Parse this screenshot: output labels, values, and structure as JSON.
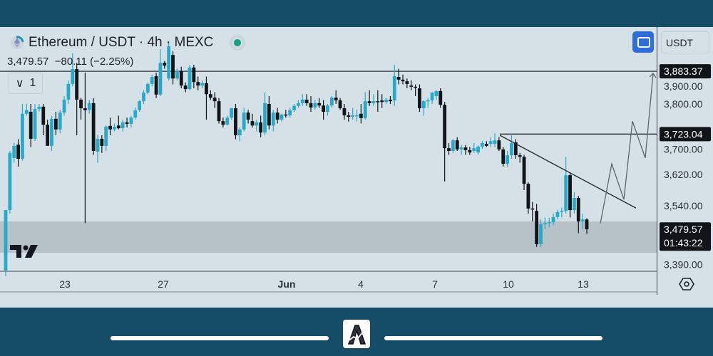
{
  "header": {
    "title": "Ethereum / USDT · 4h · MEXC",
    "last_price": "3,479.57",
    "change": "−80.11 (−2.25%)",
    "collapse_label": "1",
    "unit_label": "USDT"
  },
  "icons": {
    "coin": "ethereum-icon",
    "status": "market-open-dot",
    "fullscreen": "fullscreen-icon",
    "settings": "settings-hexagon-icon",
    "collapse": "chevron-down-icon",
    "tv_logo": "tradingview-logo",
    "app_logo": "app-logo-a"
  },
  "colors": {
    "bull": "#29a9c9",
    "bear": "#111418",
    "background": "#d6e1e7",
    "zone": "#b0bcc2",
    "band": "#154d68",
    "fullscreen_button": "#2f6ed9",
    "status_dot": "#15a083"
  },
  "chart_data": {
    "type": "candlestick",
    "title": "Ethereum / USDT · 4h · MEXC",
    "ylim": [
      3370,
      3990
    ],
    "y_ticks": [
      "3,900.00",
      "3,800.00",
      "3,700.00",
      "3,620.00",
      "3,540.00",
      "3,390.00"
    ],
    "y_tick_values": [
      3900,
      3800,
      3700,
      3620,
      3540,
      3390
    ],
    "x_ticks": [
      "23",
      "27",
      "Jun",
      "4",
      "7",
      "10",
      "13"
    ],
    "price_tags": [
      {
        "label": "3,883.37",
        "value": 3883.37
      },
      {
        "label": "3,723.04",
        "value": 3723.04
      }
    ],
    "current": {
      "price": "3,479.57",
      "value": 3479.57,
      "countdown": "01:43:22"
    },
    "horizontal_lines": [
      3883.37,
      3723.04
    ],
    "zone": [
      3420,
      3500
    ],
    "trendline": [
      3720,
      3534
    ],
    "projection": [
      3495,
      3647,
      3556,
      3756,
      3662,
      3878
    ],
    "candles_ohlc": [
      [
        3375,
        3380,
        3360,
        3529
      ],
      [
        3529,
        3680,
        3520,
        3675
      ],
      [
        3662,
        3700,
        3650,
        3693
      ],
      [
        3696,
        3710,
        3640,
        3660
      ],
      [
        3660,
        3800,
        3655,
        3775
      ],
      [
        3775,
        3800,
        3770,
        3784
      ],
      [
        3780,
        3800,
        3690,
        3711
      ],
      [
        3711,
        3800,
        3705,
        3787
      ],
      [
        3787,
        3800,
        3780,
        3793
      ],
      [
        3793,
        3800,
        3720,
        3747
      ],
      [
        3747,
        3760,
        3700,
        3693
      ],
      [
        3693,
        3770,
        3680,
        3762
      ],
      [
        3762,
        3780,
        3720,
        3735
      ],
      [
        3735,
        3785,
        3725,
        3778
      ],
      [
        3778,
        3820,
        3770,
        3811
      ],
      [
        3811,
        3860,
        3800,
        3851
      ],
      [
        3851,
        3930,
        3845,
        3889
      ],
      [
        3889,
        3905,
        3720,
        3811
      ],
      [
        3811,
        3815,
        3760,
        3789
      ],
      [
        3789,
        3880,
        3496,
        3784
      ],
      [
        3784,
        3810,
        3775,
        3802
      ],
      [
        3802,
        3815,
        3670,
        3680
      ],
      [
        3678,
        3720,
        3650,
        3711
      ],
      [
        3711,
        3720,
        3675,
        3693
      ],
      [
        3693,
        3745,
        3680,
        3742
      ],
      [
        3744,
        3765,
        3720,
        3735
      ],
      [
        3735,
        3750,
        3730,
        3742
      ],
      [
        3745,
        3770,
        3735,
        3738
      ],
      [
        3738,
        3760,
        3730,
        3753
      ],
      [
        3753,
        3765,
        3740,
        3749
      ],
      [
        3749,
        3770,
        3740,
        3765
      ],
      [
        3765,
        3790,
        3760,
        3784
      ],
      [
        3784,
        3810,
        3780,
        3807
      ],
      [
        3807,
        3835,
        3800,
        3829
      ],
      [
        3829,
        3855,
        3825,
        3851
      ],
      [
        3851,
        3875,
        3845,
        3869
      ],
      [
        3871,
        3880,
        3815,
        3824
      ],
      [
        3824,
        3940,
        3820,
        3905
      ],
      [
        3905,
        3910,
        3890,
        3898
      ],
      [
        3865,
        3960,
        3860,
        3947
      ],
      [
        3925,
        3935,
        3850,
        3865
      ],
      [
        3865,
        3890,
        3860,
        3884
      ],
      [
        3884,
        3895,
        3840,
        3847
      ],
      [
        3847,
        3855,
        3830,
        3838
      ],
      [
        3838,
        3900,
        3835,
        3893
      ],
      [
        3893,
        3900,
        3840,
        3856
      ],
      [
        3856,
        3870,
        3835,
        3847
      ],
      [
        3847,
        3860,
        3840,
        3853
      ],
      [
        3853,
        3870,
        3760,
        3825
      ],
      [
        3825,
        3835,
        3810,
        3816
      ],
      [
        3816,
        3830,
        3790,
        3807
      ],
      [
        3807,
        3815,
        3750,
        3756
      ],
      [
        3756,
        3765,
        3740,
        3747
      ],
      [
        3747,
        3770,
        3745,
        3765
      ],
      [
        3765,
        3790,
        3760,
        3789
      ],
      [
        3789,
        3800,
        3710,
        3720
      ],
      [
        3720,
        3740,
        3705,
        3735
      ],
      [
        3735,
        3790,
        3730,
        3778
      ],
      [
        3778,
        3785,
        3750,
        3760
      ],
      [
        3756,
        3775,
        3740,
        3745
      ],
      [
        3745,
        3760,
        3730,
        3753
      ],
      [
        3753,
        3770,
        3715,
        3727
      ],
      [
        3727,
        3830,
        3720,
        3802
      ],
      [
        3800,
        3820,
        3735,
        3745
      ],
      [
        3745,
        3785,
        3730,
        3778
      ],
      [
        3778,
        3790,
        3750,
        3760
      ],
      [
        3760,
        3775,
        3755,
        3773
      ],
      [
        3773,
        3785,
        3765,
        3771
      ],
      [
        3771,
        3790,
        3765,
        3784
      ],
      [
        3784,
        3800,
        3780,
        3795
      ],
      [
        3795,
        3810,
        3790,
        3802
      ],
      [
        3802,
        3825,
        3795,
        3811
      ],
      [
        3811,
        3825,
        3795,
        3802
      ],
      [
        3802,
        3820,
        3780,
        3791
      ],
      [
        3791,
        3810,
        3785,
        3802
      ],
      [
        3802,
        3815,
        3790,
        3796
      ],
      [
        3796,
        3810,
        3760,
        3780
      ],
      [
        3780,
        3800,
        3770,
        3796
      ],
      [
        3796,
        3820,
        3790,
        3816
      ],
      [
        3816,
        3835,
        3800,
        3809
      ],
      [
        3809,
        3815,
        3785,
        3789
      ],
      [
        3789,
        3800,
        3760,
        3771
      ],
      [
        3771,
        3780,
        3755,
        3767
      ],
      [
        3767,
        3790,
        3760,
        3771
      ],
      [
        3771,
        3785,
        3755,
        3771
      ],
      [
        3775,
        3800,
        3750,
        3764
      ],
      [
        3764,
        3830,
        3760,
        3807
      ],
      [
        3807,
        3835,
        3795,
        3802
      ],
      [
        3802,
        3825,
        3795,
        3807
      ],
      [
        3807,
        3835,
        3780,
        3805
      ],
      [
        3809,
        3825,
        3790,
        3805
      ],
      [
        3805,
        3815,
        3800,
        3811
      ],
      [
        3811,
        3820,
        3800,
        3807
      ],
      [
        3809,
        3900,
        3795,
        3871
      ],
      [
        3869,
        3890,
        3850,
        3862
      ],
      [
        3862,
        3875,
        3850,
        3858
      ],
      [
        3858,
        3865,
        3840,
        3851
      ],
      [
        3847,
        3860,
        3835,
        3844
      ],
      [
        3844,
        3850,
        3820,
        3842
      ],
      [
        3840,
        3850,
        3780,
        3789
      ],
      [
        3789,
        3810,
        3770,
        3807
      ],
      [
        3807,
        3815,
        3790,
        3809
      ],
      [
        3809,
        3830,
        3800,
        3829
      ],
      [
        3820,
        3835,
        3810,
        3833
      ],
      [
        3833,
        3840,
        3790,
        3798
      ],
      [
        3798,
        3805,
        3602,
        3687
      ],
      [
        3687,
        3700,
        3670,
        3680
      ],
      [
        3680,
        3710,
        3675,
        3707
      ],
      [
        3707,
        3715,
        3680,
        3684
      ],
      [
        3684,
        3695,
        3670,
        3689
      ],
      [
        3689,
        3695,
        3670,
        3682
      ],
      [
        3682,
        3690,
        3670,
        3676
      ],
      [
        3680,
        3700,
        3675,
        3687
      ],
      [
        3676,
        3695,
        3670,
        3691
      ],
      [
        3691,
        3705,
        3685,
        3700
      ],
      [
        3698,
        3705,
        3690,
        3693
      ],
      [
        3698,
        3715,
        3690,
        3705
      ],
      [
        3698,
        3725,
        3690,
        3707
      ],
      [
        3707,
        3715,
        3680,
        3684
      ],
      [
        3684,
        3690,
        3640,
        3647
      ],
      [
        3647,
        3680,
        3640,
        3669
      ],
      [
        3669,
        3720,
        3660,
        3700
      ],
      [
        3702,
        3710,
        3660,
        3669
      ],
      [
        3669,
        3675,
        3650,
        3665
      ],
      [
        3665,
        3670,
        3580,
        3596
      ],
      [
        3596,
        3600,
        3520,
        3533
      ],
      [
        3533,
        3550,
        3500,
        3531
      ],
      [
        3527,
        3545,
        3435,
        3442
      ],
      [
        3442,
        3505,
        3435,
        3493
      ],
      [
        3493,
        3510,
        3480,
        3496
      ],
      [
        3496,
        3510,
        3485,
        3498
      ],
      [
        3498,
        3520,
        3490,
        3511
      ],
      [
        3511,
        3530,
        3505,
        3524
      ],
      [
        3524,
        3535,
        3510,
        3527
      ],
      [
        3527,
        3665,
        3520,
        3618
      ],
      [
        3618,
        3625,
        3510,
        3529
      ],
      [
        3529,
        3575,
        3520,
        3560
      ],
      [
        3560,
        3565,
        3470,
        3500
      ],
      [
        3500,
        3520,
        3480,
        3505
      ],
      [
        3505,
        3508,
        3468,
        3480
      ]
    ]
  }
}
